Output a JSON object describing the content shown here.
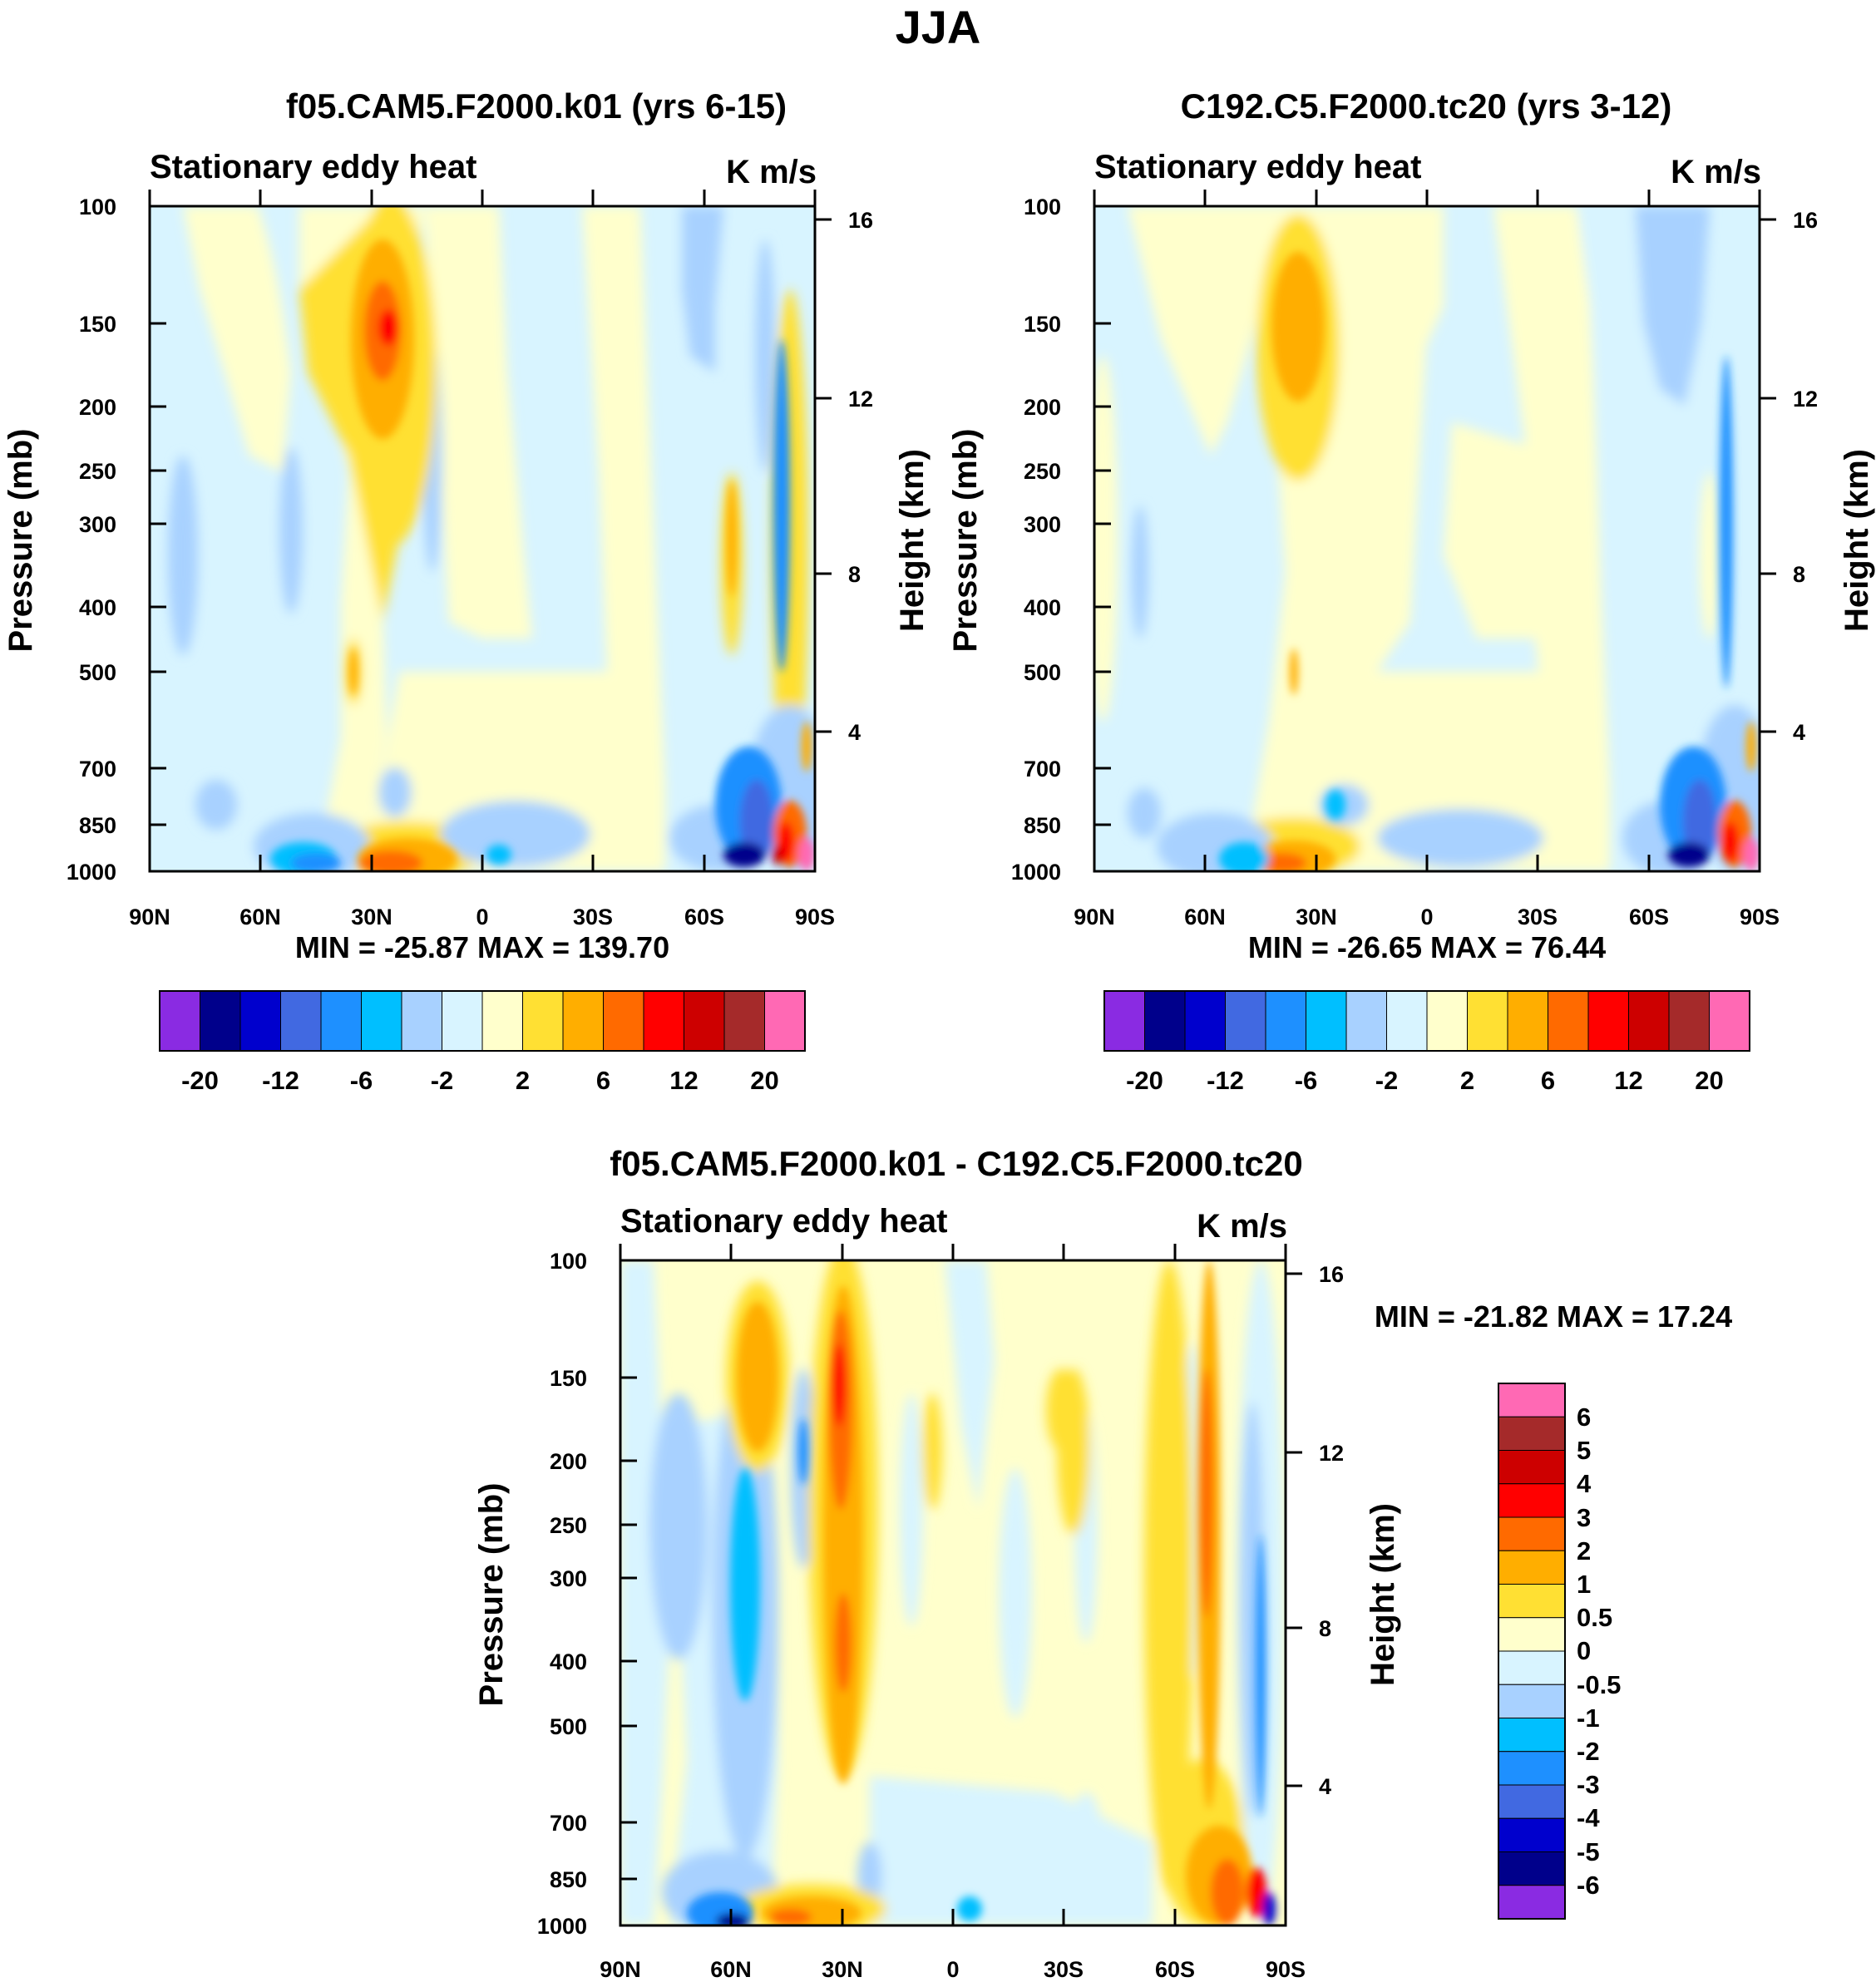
{
  "figure_title": "JJA",
  "colors": {
    "abs_scale": [
      "#8a2be2",
      "#00008b",
      "#0000cd",
      "#4169e1",
      "#1e90ff",
      "#00bfff",
      "#a8d1ff",
      "#d8f4ff",
      "#ffffcc",
      "#ffe033",
      "#ffae00",
      "#ff6a00",
      "#ff0000",
      "#cd0000",
      "#a52a2a",
      "#ff69b4"
    ],
    "diff_scale": [
      "#8a2be2",
      "#00008b",
      "#0000cd",
      "#4169e1",
      "#1e90ff",
      "#00bfff",
      "#a8d1ff",
      "#d8f4ff",
      "#ffffcc",
      "#ffe033",
      "#ffae00",
      "#ff6a00",
      "#ff0000",
      "#cd0000",
      "#a52a2a",
      "#ff69b4"
    ]
  },
  "chart_data": [
    {
      "type": "heatmap",
      "title": "f05.CAM5.F2000.k01 (yrs 6-15)",
      "left_string": "Stationary eddy heat",
      "right_string": "K m/s",
      "ylabel": "Pressure (mb)",
      "y2label": "Height (km)",
      "x_ticks": [
        "90N",
        "60N",
        "30N",
        "0",
        "30S",
        "60S",
        "90S"
      ],
      "y_ticks": [
        "100",
        "150",
        "200",
        "250",
        "300",
        "400",
        "500",
        "700",
        "850",
        "1000"
      ],
      "y2_ticks": [
        "16",
        "12",
        "8",
        "4"
      ],
      "stats": "MIN = -25.87  MAX = 139.70",
      "min": -25.87,
      "max": 139.7,
      "levels": [
        "-20",
        "-12",
        "-6",
        "-2",
        "2",
        "6",
        "12",
        "20"
      ]
    },
    {
      "type": "heatmap",
      "title": "C192.C5.F2000.tc20 (yrs 3-12)",
      "left_string": "Stationary eddy heat",
      "right_string": "K m/s",
      "ylabel": "Pressure (mb)",
      "y2label": "Height (km)",
      "x_ticks": [
        "90N",
        "60N",
        "30N",
        "0",
        "30S",
        "60S",
        "90S"
      ],
      "y_ticks": [
        "100",
        "150",
        "200",
        "250",
        "300",
        "400",
        "500",
        "700",
        "850",
        "1000"
      ],
      "y2_ticks": [
        "16",
        "12",
        "8",
        "4"
      ],
      "stats": "MIN = -26.65  MAX =  76.44",
      "min": -26.65,
      "max": 76.44,
      "levels": [
        "-20",
        "-12",
        "-6",
        "-2",
        "2",
        "6",
        "12",
        "20"
      ]
    },
    {
      "type": "heatmap",
      "title": "f05.CAM5.F2000.k01 - C192.C5.F2000.tc20",
      "left_string": "Stationary eddy heat",
      "right_string": "K m/s",
      "ylabel": "Pressure (mb)",
      "y2label": "Height (km)",
      "x_ticks": [
        "90N",
        "60N",
        "30N",
        "0",
        "30S",
        "60S",
        "90S"
      ],
      "y_ticks": [
        "100",
        "150",
        "200",
        "250",
        "300",
        "400",
        "500",
        "700",
        "850",
        "1000"
      ],
      "y2_ticks": [
        "16",
        "12",
        "8",
        "4"
      ],
      "stats": "MIN = -21.82  MAX =  17.24",
      "min": -21.82,
      "max": 17.24,
      "levels": [
        "6",
        "5",
        "4",
        "3",
        "2",
        "1",
        "0.5",
        "0",
        "-0.5",
        "-1",
        "-2",
        "-3",
        "-4",
        "-5",
        "-6"
      ]
    }
  ]
}
